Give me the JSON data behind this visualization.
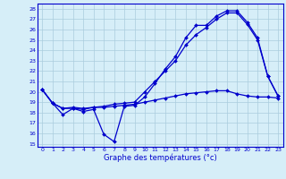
{
  "xlabel": "Graphe des températures (°c)",
  "background_color": "#d6eef8",
  "line_color": "#0000cc",
  "grid_color": "#aaccdd",
  "ylim": [
    14.7,
    28.5
  ],
  "xlim": [
    -0.5,
    23.5
  ],
  "yticks": [
    15,
    16,
    17,
    18,
    19,
    20,
    21,
    22,
    23,
    24,
    25,
    26,
    27,
    28
  ],
  "xticks": [
    0,
    1,
    2,
    3,
    4,
    5,
    6,
    7,
    8,
    9,
    10,
    11,
    12,
    13,
    14,
    15,
    16,
    17,
    18,
    19,
    20,
    21,
    22,
    23
  ],
  "series": [
    {
      "x": [
        0,
        1,
        2,
        3,
        4,
        5,
        6,
        7,
        8,
        9,
        10,
        11,
        12,
        13,
        14,
        15,
        16,
        17,
        18,
        19,
        20,
        21,
        22,
        23
      ],
      "y": [
        20.2,
        18.9,
        17.8,
        18.4,
        18.1,
        18.3,
        15.9,
        15.2,
        18.6,
        18.7,
        19.5,
        20.8,
        22.2,
        23.4,
        25.2,
        26.4,
        26.4,
        27.3,
        27.8,
        27.8,
        26.7,
        25.2,
        21.5,
        19.6
      ]
    },
    {
      "x": [
        0,
        1,
        2,
        3,
        4,
        5,
        6,
        7,
        8,
        9,
        10,
        11,
        12,
        13,
        14,
        15,
        16,
        17,
        18,
        19,
        20,
        21,
        22,
        23
      ],
      "y": [
        20.2,
        18.9,
        18.4,
        18.4,
        18.3,
        18.5,
        18.5,
        18.6,
        18.7,
        18.8,
        19.0,
        19.2,
        19.4,
        19.6,
        19.8,
        19.9,
        20.0,
        20.1,
        20.1,
        19.8,
        19.6,
        19.5,
        19.5,
        19.4
      ]
    },
    {
      "x": [
        0,
        1,
        2,
        3,
        4,
        5,
        6,
        7,
        8,
        9,
        10,
        11,
        12,
        13,
        14,
        15,
        16,
        17,
        18,
        19,
        20,
        21,
        22,
        23
      ],
      "y": [
        20.2,
        18.9,
        18.4,
        18.5,
        18.4,
        18.5,
        18.6,
        18.8,
        18.9,
        19.0,
        20.0,
        21.0,
        22.0,
        23.0,
        24.5,
        25.5,
        26.2,
        27.0,
        27.6,
        27.6,
        26.5,
        25.0,
        21.5,
        19.6
      ]
    }
  ]
}
